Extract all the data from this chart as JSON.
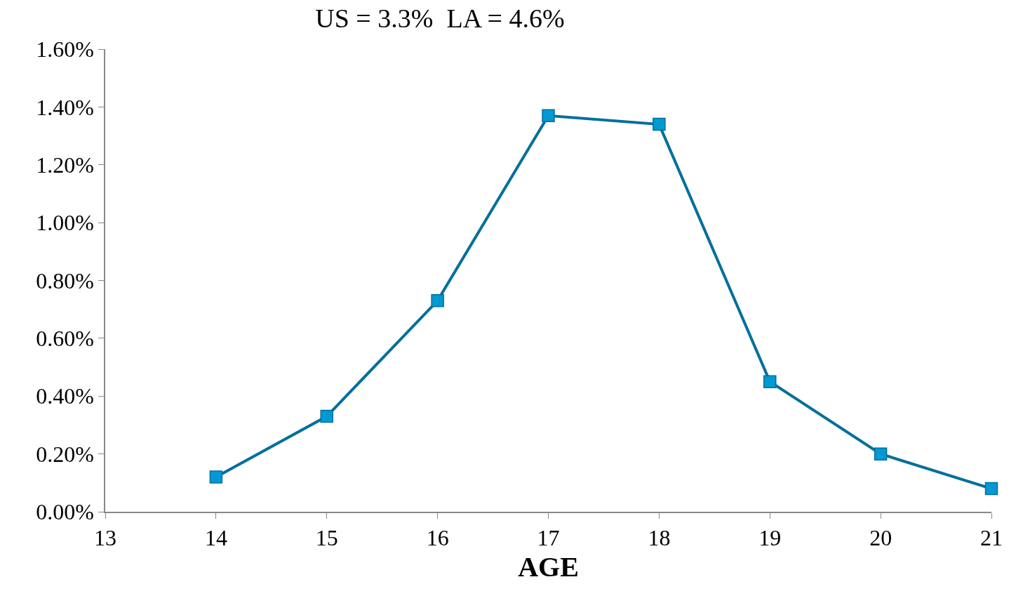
{
  "chart_data": {
    "type": "line",
    "title": "US = 3.3%  LA = 4.6%",
    "xlabel": "AGE",
    "x": [
      14,
      15,
      16,
      17,
      18,
      19,
      20,
      21
    ],
    "series": [
      {
        "color": "#006f9c",
        "values": [
          0.12,
          0.33,
          0.73,
          1.37,
          1.34,
          0.45,
          0.2,
          0.08
        ]
      }
    ],
    "xlim": [
      13,
      21
    ],
    "xticks": [
      13,
      14,
      15,
      16,
      17,
      18,
      19,
      20,
      21
    ],
    "ylim": [
      0,
      1.6
    ],
    "yticks": [
      {
        "value": 0,
        "label": "0.00%"
      },
      {
        "value": 0.2,
        "label": "0.20%"
      },
      {
        "value": 0.4,
        "label": "0.40%"
      },
      {
        "value": 0.6,
        "label": "0.60%"
      },
      {
        "value": 0.8,
        "label": "0.80%"
      },
      {
        "value": 1.0,
        "label": "1.00%"
      },
      {
        "value": 1.2,
        "label": "1.20%"
      },
      {
        "value": 1.4,
        "label": "1.40%"
      },
      {
        "value": 1.6,
        "label": "1.60%"
      }
    ],
    "grid": false,
    "marker": "square",
    "line_style": "solid"
  }
}
